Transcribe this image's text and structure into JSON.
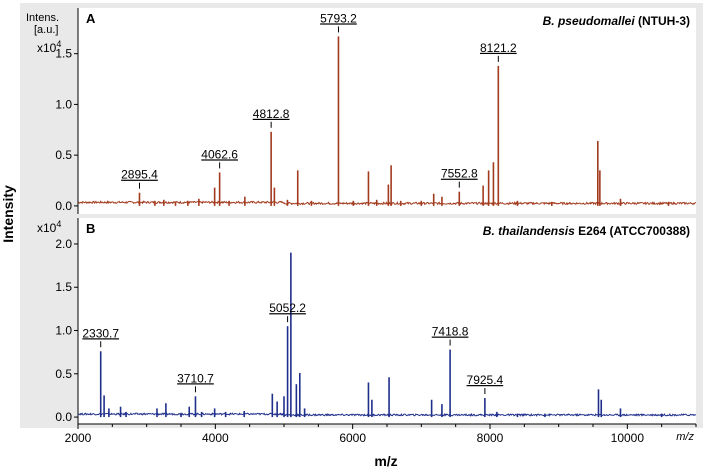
{
  "figure": {
    "ylabel": "Intensity",
    "xlabel": "m/z",
    "xaxis_unit_label": "m/z",
    "xticks": [
      2000,
      4000,
      6000,
      8000,
      10000
    ],
    "xlim": [
      2000,
      11000
    ]
  },
  "chart_data": [
    {
      "type": "line",
      "panel": "A",
      "title_italic": "B. pseudomallei",
      "title_plain": " (NTUH-3)",
      "ylabel_top": "Intens.",
      "ylabel_units": "[a.u.]",
      "ylabel_scale": "x10",
      "ylabel_exp": "4",
      "yticks": [
        0.0,
        0.5,
        1.0,
        1.5
      ],
      "ylim": [
        -0.08,
        1.95
      ],
      "color": "#a23a1e",
      "peak_labels": [
        {
          "mz": 2895.4,
          "label": "2895.4"
        },
        {
          "mz": 4062.6,
          "label": "4062.6"
        },
        {
          "mz": 4812.8,
          "label": "4812.8"
        },
        {
          "mz": 5793.2,
          "label": "5793.2"
        },
        {
          "mz": 7552.8,
          "label": "7552.8"
        },
        {
          "mz": 8121.2,
          "label": "8121.2"
        }
      ],
      "peaks": [
        [
          2895.4,
          0.13
        ],
        [
          3120,
          0.05
        ],
        [
          3250,
          0.06
        ],
        [
          3420,
          0.04
        ],
        [
          3600,
          0.05
        ],
        [
          3760,
          0.07
        ],
        [
          3990,
          0.18
        ],
        [
          4062.6,
          0.33
        ],
        [
          4200,
          0.05
        ],
        [
          4430,
          0.09
        ],
        [
          4812.8,
          0.73
        ],
        [
          4860,
          0.18
        ],
        [
          5050,
          0.06
        ],
        [
          5200,
          0.35
        ],
        [
          5400,
          0.05
        ],
        [
          5793.2,
          1.67
        ],
        [
          6010,
          0.05
        ],
        [
          6230,
          0.34
        ],
        [
          6350,
          0.06
        ],
        [
          6520,
          0.21
        ],
        [
          6560,
          0.4
        ],
        [
          6700,
          0.05
        ],
        [
          7000,
          0.05
        ],
        [
          7180,
          0.12
        ],
        [
          7300,
          0.09
        ],
        [
          7552.8,
          0.14
        ],
        [
          7900,
          0.2
        ],
        [
          7980,
          0.35
        ],
        [
          8050,
          0.43
        ],
        [
          8121.2,
          1.38
        ],
        [
          8400,
          0.05
        ],
        [
          8900,
          0.04
        ],
        [
          9570,
          0.64
        ],
        [
          9600,
          0.35
        ],
        [
          9900,
          0.07
        ],
        [
          10600,
          0.03
        ]
      ]
    },
    {
      "type": "line",
      "panel": "B",
      "title_italic": "B. thailandensis",
      "title_plain": " E264 (ATCC700388)",
      "ylabel_scale": "x10",
      "ylabel_exp": "4",
      "yticks": [
        0.0,
        0.5,
        1.0,
        1.5,
        2.0
      ],
      "ylim": [
        -0.08,
        2.3
      ],
      "color": "#1f2f8c",
      "peak_labels": [
        {
          "mz": 2330.7,
          "label": "2330.7"
        },
        {
          "mz": 3710.7,
          "label": "3710.7"
        },
        {
          "mz": 5052.2,
          "label": "5052.2"
        },
        {
          "mz": 7418.8,
          "label": "7418.8"
        },
        {
          "mz": 7925.4,
          "label": "7925.4"
        }
      ],
      "peaks": [
        [
          2330.7,
          0.76
        ],
        [
          2380,
          0.25
        ],
        [
          2450,
          0.1
        ],
        [
          2620,
          0.12
        ],
        [
          2700,
          0.06
        ],
        [
          3150,
          0.1
        ],
        [
          3280,
          0.16
        ],
        [
          3500,
          0.05
        ],
        [
          3620,
          0.12
        ],
        [
          3710.7,
          0.24
        ],
        [
          3800,
          0.06
        ],
        [
          3990,
          0.1
        ],
        [
          4150,
          0.06
        ],
        [
          4420,
          0.07
        ],
        [
          4830,
          0.27
        ],
        [
          4900,
          0.18
        ],
        [
          5000,
          0.24
        ],
        [
          5052.2,
          1.05
        ],
        [
          5100,
          1.9
        ],
        [
          5180,
          0.38
        ],
        [
          5230,
          0.51
        ],
        [
          5300,
          0.1
        ],
        [
          6230,
          0.4
        ],
        [
          6280,
          0.2
        ],
        [
          6530,
          0.46
        ],
        [
          7150,
          0.2
        ],
        [
          7300,
          0.15
        ],
        [
          7418.8,
          0.78
        ],
        [
          7925.4,
          0.22
        ],
        [
          8100,
          0.06
        ],
        [
          8400,
          0.04
        ],
        [
          8800,
          0.04
        ],
        [
          9580,
          0.32
        ],
        [
          9620,
          0.2
        ],
        [
          9900,
          0.1
        ],
        [
          10500,
          0.04
        ]
      ]
    }
  ]
}
